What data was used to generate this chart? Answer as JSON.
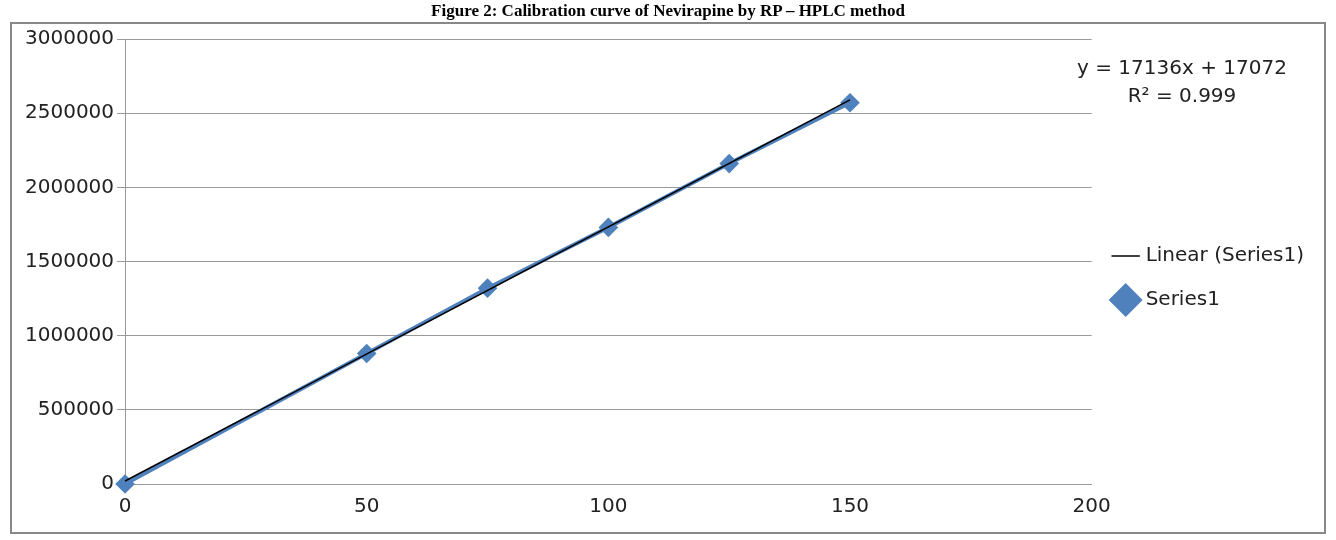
{
  "chart_data": {
    "type": "line",
    "title": "Figure 2: Calibration curve of Nevirapine by RP – HPLC method",
    "x": [
      0,
      50,
      75,
      100,
      125,
      150
    ],
    "series": [
      {
        "name": "Series1",
        "color": "#4f81bd",
        "values": [
          0,
          880000,
          1320000,
          1730000,
          2160000,
          2570000
        ],
        "marker": "diamond"
      },
      {
        "name": "Linear (Series1)",
        "color": "#000000",
        "x": [
          0,
          150
        ],
        "values": [
          20000,
          2590000
        ],
        "marker": "none"
      }
    ],
    "xlim": [
      0,
      200
    ],
    "xticks": [
      0,
      50,
      100,
      150,
      200
    ],
    "ylim": [
      0,
      3000000
    ],
    "yticks": [
      0,
      500000,
      1000000,
      1500000,
      2000000,
      2500000,
      3000000
    ],
    "grid": "y",
    "legend": "right",
    "line_style": "solid",
    "annotations": [
      "y = 17136x + 17072",
      "R² = 0.999"
    ]
  }
}
